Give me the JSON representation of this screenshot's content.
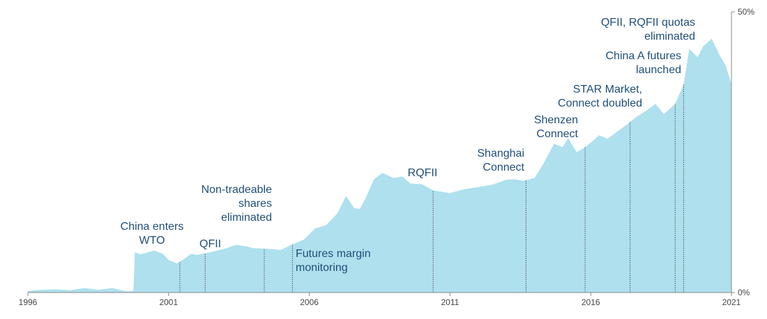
{
  "chart_data": {
    "type": "area",
    "title": "",
    "xlabel": "",
    "ylabel": "",
    "xlim": [
      1996,
      2021
    ],
    "ylim": [
      0,
      50
    ],
    "y_unit": "%",
    "grid": false,
    "legend": "none",
    "x_ticks": [
      1996,
      2001,
      2006,
      2011,
      2016,
      2021
    ],
    "x_tick_labels": [
      "1996",
      "2001",
      "2006",
      "2011",
      "2016",
      "2021"
    ],
    "y_ticks": [
      0,
      50
    ],
    "y_tick_labels": [
      "0%",
      "50%"
    ],
    "y_axis_position": "right",
    "colors": {
      "area": "#aee0ee",
      "annotation_text": "#1f4e79",
      "event_line": "#555555",
      "axis": "#888888"
    },
    "series": [
      {
        "x": [
          1996.0,
          1996.5,
          1997.0,
          1997.5,
          1998.0,
          1998.5,
          1999.0,
          1999.5,
          1999.75,
          1999.8,
          2000.0,
          2000.5,
          2000.8,
          2001.0,
          2001.3,
          2001.5,
          2001.8,
          2002.0,
          2002.5,
          2003.0,
          2003.4,
          2003.8,
          2004.0,
          2004.5,
          2005.0,
          2005.4,
          2005.8,
          2006.2,
          2006.6,
          2007.0,
          2007.3,
          2007.6,
          2007.8,
          2008.0,
          2008.3,
          2008.6,
          2009.0,
          2009.3,
          2009.6,
          2010.0,
          2010.4,
          2011.0,
          2011.5,
          2012.0,
          2012.5,
          2013.0,
          2013.3,
          2013.6,
          2014.0,
          2014.3,
          2014.7,
          2015.0,
          2015.2,
          2015.5,
          2015.8,
          2016.0,
          2016.3,
          2016.6,
          2017.0,
          2017.3,
          2017.6,
          2018.0,
          2018.3,
          2018.6,
          2019.0,
          2019.3,
          2019.5,
          2019.8,
          2020.0,
          2020.3,
          2020.6,
          2020.8,
          2021.0
        ],
        "values": [
          0.3,
          0.5,
          0.6,
          0.4,
          0.8,
          0.5,
          0.8,
          0.2,
          0.3,
          7.2,
          6.8,
          7.5,
          6.9,
          5.8,
          5.2,
          5.8,
          6.9,
          6.7,
          7.2,
          7.8,
          8.5,
          8.2,
          7.9,
          7.8,
          7.6,
          8.6,
          9.4,
          11.4,
          12.0,
          14.1,
          17.2,
          15.0,
          14.9,
          16.8,
          20.2,
          21.3,
          20.4,
          20.7,
          19.4,
          19.3,
          18.2,
          17.7,
          18.4,
          18.8,
          19.2,
          20.1,
          20.2,
          19.9,
          20.4,
          22.8,
          26.5,
          25.9,
          27.5,
          25.0,
          25.9,
          26.7,
          28.0,
          27.4,
          28.9,
          30.0,
          31.2,
          32.5,
          33.6,
          31.8,
          33.6,
          37.1,
          43.4,
          41.9,
          43.9,
          45.2,
          42.1,
          40.4,
          37.1
        ]
      }
    ],
    "events": [
      {
        "x": 2001.4,
        "label_lines": [
          "China enters",
          "WTO"
        ],
        "align": "middle"
      },
      {
        "x": 2002.3,
        "label_lines": [
          "QFII"
        ],
        "align": "start"
      },
      {
        "x": 2004.4,
        "label_lines": [
          "Non-tradeable",
          "shares",
          "eliminated"
        ],
        "align": "end"
      },
      {
        "x": 2005.4,
        "label_lines": [
          "Futures margin",
          "monitoring"
        ],
        "align": "start"
      },
      {
        "x": 2010.4,
        "label_lines": [
          "RQFII"
        ],
        "align": "middle"
      },
      {
        "x": 2013.7,
        "label_lines": [
          "Shanghai",
          "Connect"
        ],
        "align": "end"
      },
      {
        "x": 2015.8,
        "label_lines": [
          "Shenzen",
          "Connect"
        ],
        "align": "end"
      },
      {
        "x": 2017.4,
        "label_lines": [
          "STAR Market,",
          "Connect doubled"
        ],
        "align": "end"
      },
      {
        "x": 2019.0,
        "label_lines": [
          "China A futures",
          "launched"
        ],
        "align": "end"
      },
      {
        "x": 2019.3,
        "label_lines": [
          "QFII, RQFII quotas",
          "eliminated"
        ],
        "align": "end"
      }
    ]
  }
}
